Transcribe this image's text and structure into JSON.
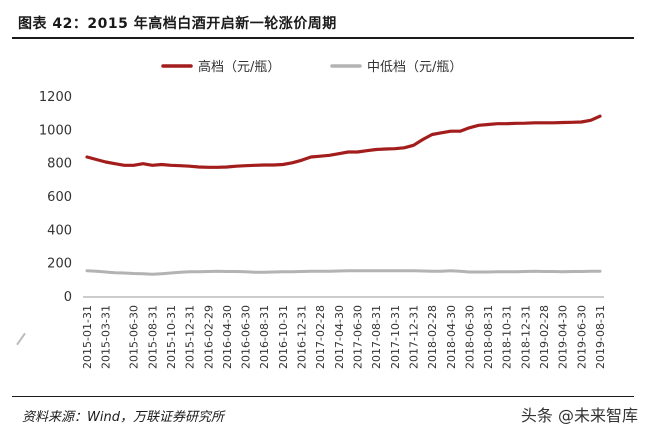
{
  "header": {
    "title": "图表 42：2015 年高档白酒开启新一轮涨价周期"
  },
  "footer": {
    "source": "资料来源：Wind，万联证券研究所"
  },
  "watermark": {
    "text": "头条 @未来智库"
  },
  "chart_data": {
    "type": "line",
    "title": "",
    "xlabel": "",
    "ylabel": "",
    "ylim": [
      0,
      1200
    ],
    "yticks": [
      0,
      200,
      400,
      600,
      800,
      1000,
      1200
    ],
    "grid": false,
    "legend_position": "top",
    "x": [
      "2015-01-31",
      "2015-02-28",
      "2015-03-31",
      "2015-04-30",
      "2015-05-31",
      "2015-06-30",
      "2015-07-31",
      "2015-08-31",
      "2015-09-30",
      "2015-10-31",
      "2015-11-30",
      "2015-12-31",
      "2016-01-31",
      "2016-02-29",
      "2016-03-31",
      "2016-04-30",
      "2016-05-31",
      "2016-06-30",
      "2016-07-31",
      "2016-08-31",
      "2016-09-30",
      "2016-10-31",
      "2016-11-30",
      "2016-12-31",
      "2017-01-31",
      "2017-02-28",
      "2017-03-31",
      "2017-04-30",
      "2017-05-31",
      "2017-06-30",
      "2017-07-31",
      "2017-08-31",
      "2017-09-30",
      "2017-10-31",
      "2017-11-30",
      "2017-12-31",
      "2018-01-31",
      "2018-02-28",
      "2018-03-31",
      "2018-04-30",
      "2018-05-31",
      "2018-06-30",
      "2018-07-31",
      "2018-08-31",
      "2018-09-30",
      "2018-10-31",
      "2018-11-30",
      "2018-12-31",
      "2019-01-31",
      "2019-02-28",
      "2019-03-31",
      "2019-04-30",
      "2019-05-31",
      "2019-06-30",
      "2019-07-31",
      "2019-08-31"
    ],
    "xticks_shown": [
      "2015-01-31",
      "2015-03-31",
      "2015-06-30",
      "2015-08-31",
      "2015-10-31",
      "2015-12-31",
      "2016-02-29",
      "2016-04-30",
      "2016-06-30",
      "2016-08-31",
      "2016-10-31",
      "2016-12-31",
      "2017-02-28",
      "2017-04-30",
      "2017-06-30",
      "2017-08-31",
      "2017-10-31",
      "2017-12-31",
      "2018-02-28",
      "2018-04-30",
      "2018-06-30",
      "2018-08-31",
      "2018-10-31",
      "2018-12-31",
      "2019-02-28",
      "2019-04-30",
      "2019-06-30",
      "2019-08-31"
    ],
    "series": [
      {
        "name": "高档（元/瓶）",
        "color": "#a31d1d",
        "values": [
          840,
          825,
          810,
          800,
          790,
          790,
          800,
          790,
          795,
          790,
          788,
          785,
          780,
          778,
          778,
          780,
          785,
          788,
          790,
          792,
          792,
          795,
          805,
          820,
          840,
          845,
          850,
          860,
          870,
          870,
          878,
          885,
          888,
          890,
          895,
          910,
          945,
          975,
          985,
          995,
          995,
          1015,
          1030,
          1035,
          1040,
          1040,
          1042,
          1043,
          1045,
          1045,
          1045,
          1047,
          1048,
          1050,
          1060,
          1085
        ]
      },
      {
        "name": "中低档（元/瓶）",
        "color": "#b3b3b3",
        "values": [
          158,
          155,
          150,
          146,
          144,
          141,
          140,
          137,
          140,
          144,
          148,
          151,
          152,
          153,
          154,
          153,
          153,
          151,
          148,
          148,
          150,
          151,
          152,
          153,
          154,
          154,
          155,
          156,
          157,
          157,
          157,
          157,
          157,
          157,
          157,
          157,
          156,
          155,
          155,
          157,
          155,
          150,
          150,
          150,
          151,
          151,
          151,
          153,
          155,
          153,
          153,
          152,
          153,
          153,
          154,
          155
        ]
      }
    ]
  }
}
